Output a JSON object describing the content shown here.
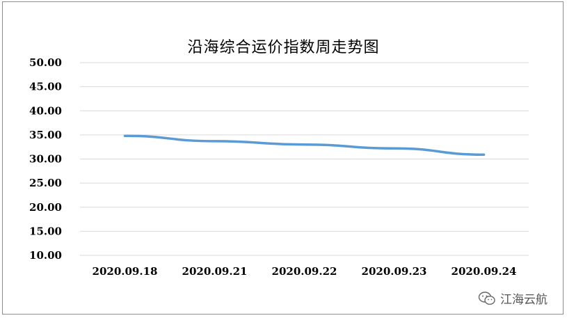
{
  "chart_data": {
    "type": "line",
    "title": "沿海综合运价指数周走势图",
    "categories": [
      "2020.09.18",
      "2020.09.21",
      "2020.09.22",
      "2020.09.23",
      "2020.09.24"
    ],
    "series": [
      {
        "values": [
          34.8,
          33.7,
          33.0,
          32.2,
          30.9
        ],
        "color": "#5b9bd5"
      }
    ],
    "y_ticks": [
      "10.00",
      "15.00",
      "20.00",
      "25.00",
      "30.00",
      "35.00",
      "40.00",
      "45.00",
      "50.00"
    ],
    "ylim": [
      10,
      50
    ],
    "grid": true,
    "xlabel": "",
    "ylabel": ""
  },
  "watermark": {
    "text": "江海云航",
    "icon": "wechat-icon"
  }
}
